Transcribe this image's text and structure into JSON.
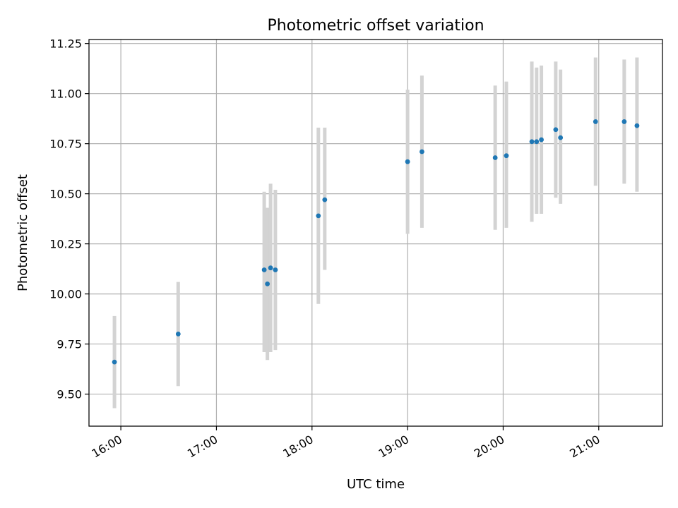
{
  "chart_data": {
    "type": "scatter",
    "title": "Photometric offset variation",
    "xlabel": "UTC time",
    "ylabel": "Photometric offset",
    "x_unit": "UTC time (HH:MM)",
    "xlim": [
      "15:40",
      "21:40"
    ],
    "ylim": [
      9.34,
      11.27
    ],
    "x_ticks": [
      "16:00",
      "17:00",
      "18:00",
      "19:00",
      "20:00",
      "21:00"
    ],
    "y_ticks": [
      "9.50",
      "9.75",
      "10.00",
      "10.25",
      "10.50",
      "10.75",
      "11.00",
      "11.25"
    ],
    "grid": true,
    "legend": "none",
    "point_color": "#1f77b4",
    "errorbar_color": "#d3d3d3",
    "series": [
      {
        "points": [
          {
            "x": "15:56",
            "y": 9.66,
            "ylow": 9.43,
            "yhigh": 9.89
          },
          {
            "x": "16:36",
            "y": 9.8,
            "ylow": 9.54,
            "yhigh": 10.06
          },
          {
            "x": "17:30",
            "y": 10.12,
            "ylow": 9.71,
            "yhigh": 10.51
          },
          {
            "x": "17:32",
            "y": 10.05,
            "ylow": 9.67,
            "yhigh": 10.43
          },
          {
            "x": "17:34",
            "y": 10.13,
            "ylow": 9.71,
            "yhigh": 10.55
          },
          {
            "x": "17:37",
            "y": 10.12,
            "ylow": 9.72,
            "yhigh": 10.52
          },
          {
            "x": "18:04",
            "y": 10.39,
            "ylow": 9.95,
            "yhigh": 10.83
          },
          {
            "x": "18:08",
            "y": 10.47,
            "ylow": 10.12,
            "yhigh": 10.83
          },
          {
            "x": "19:00",
            "y": 10.66,
            "ylow": 10.3,
            "yhigh": 11.02
          },
          {
            "x": "19:09",
            "y": 10.71,
            "ylow": 10.33,
            "yhigh": 11.09
          },
          {
            "x": "19:55",
            "y": 10.68,
            "ylow": 10.32,
            "yhigh": 11.04
          },
          {
            "x": "20:02",
            "y": 10.69,
            "ylow": 10.33,
            "yhigh": 11.06
          },
          {
            "x": "20:18",
            "y": 10.76,
            "ylow": 10.36,
            "yhigh": 11.16
          },
          {
            "x": "20:21",
            "y": 10.76,
            "ylow": 10.4,
            "yhigh": 11.13
          },
          {
            "x": "20:24",
            "y": 10.77,
            "ylow": 10.4,
            "yhigh": 11.14
          },
          {
            "x": "20:33",
            "y": 10.82,
            "ylow": 10.48,
            "yhigh": 11.16
          },
          {
            "x": "20:36",
            "y": 10.78,
            "ylow": 10.45,
            "yhigh": 11.12
          },
          {
            "x": "20:58",
            "y": 10.86,
            "ylow": 10.54,
            "yhigh": 11.18
          },
          {
            "x": "21:16",
            "y": 10.86,
            "ylow": 10.55,
            "yhigh": 11.17
          },
          {
            "x": "21:24",
            "y": 10.84,
            "ylow": 10.51,
            "yhigh": 11.18
          }
        ]
      }
    ]
  }
}
